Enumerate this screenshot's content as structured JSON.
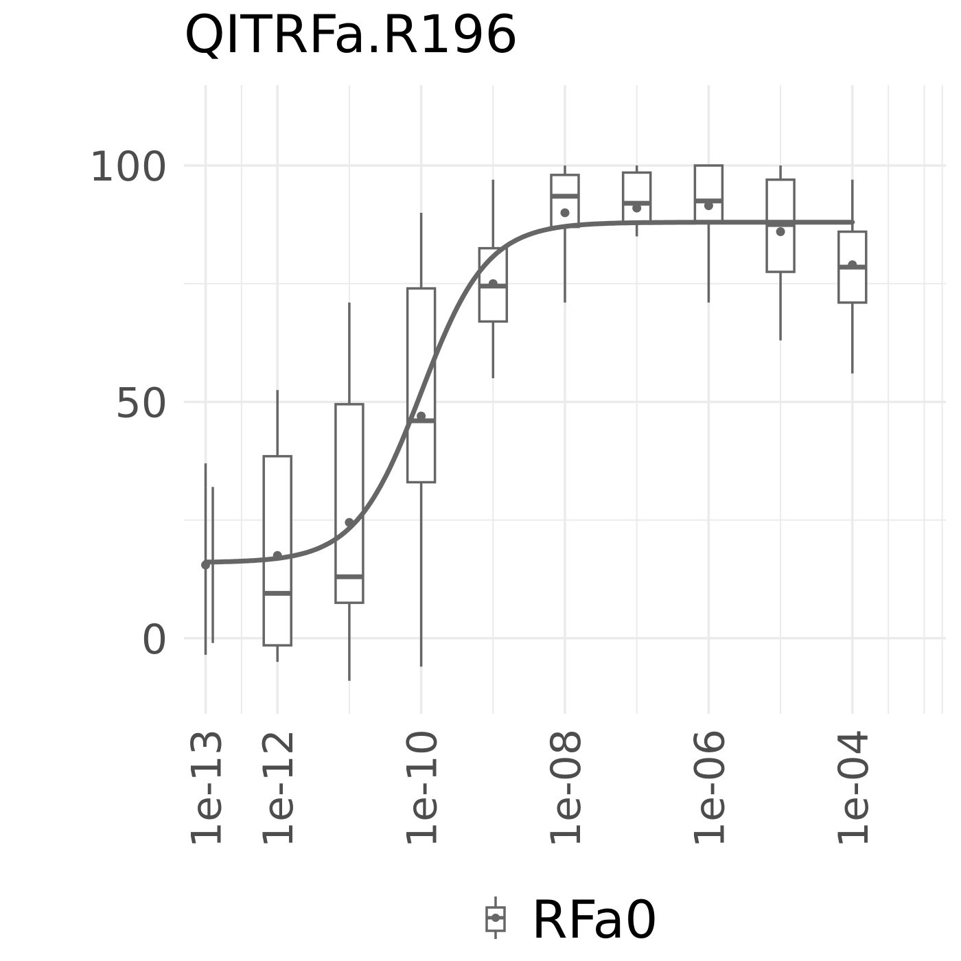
{
  "chart_data": {
    "type": "box",
    "title": "QITRFa.R196",
    "xlabel": "",
    "ylabel": "",
    "x_scale": "log10",
    "xlim": [
      5e-14,
      0.002
    ],
    "ylim": [
      -16,
      117
    ],
    "x_ticks": [
      1e-13,
      1e-12,
      1e-10,
      1e-08,
      1e-06,
      0.0001
    ],
    "x_tick_labels": [
      "1e-13",
      "1e-12",
      "1e-10",
      "1e-08",
      "1e-06",
      "1e-04"
    ],
    "y_ticks": [
      0,
      50,
      100
    ],
    "y_tick_labels": [
      "0",
      "50",
      "100"
    ],
    "grid": true,
    "legend": {
      "position": "bottom",
      "entries": [
        "RFa0"
      ]
    },
    "color": "#666666",
    "series": [
      {
        "name": "RFa0",
        "boxes": [
          {
            "x": 1e-13,
            "whisker_low": -3.5,
            "q1": 32,
            "median": 32,
            "q3": 32,
            "whisker_high": 37,
            "mean": 15.5
          },
          {
            "x": 1e-12,
            "whisker_low": -5,
            "q1": -1.5,
            "median": 9.5,
            "q3": 38.5,
            "whisker_high": 52.5,
            "mean": 17.5
          },
          {
            "x": 1e-11,
            "whisker_low": -9,
            "q1": 7.5,
            "median": 13,
            "q3": 49.5,
            "whisker_high": 71,
            "mean": 24.5
          },
          {
            "x": 1e-10,
            "whisker_low": -6,
            "q1": 33,
            "median": 46,
            "q3": 74,
            "whisker_high": 90,
            "mean": 47
          },
          {
            "x": 1e-09,
            "whisker_low": 55,
            "q1": 67,
            "median": 74.5,
            "q3": 82.5,
            "whisker_high": 97,
            "mean": 75
          },
          {
            "x": 1e-08,
            "whisker_low": 71,
            "q1": 87,
            "median": 93.5,
            "q3": 98,
            "whisker_high": 100,
            "mean": 90
          },
          {
            "x": 1e-07,
            "whisker_low": 85,
            "q1": 88,
            "median": 92,
            "q3": 98.5,
            "whisker_high": 100,
            "mean": 91
          },
          {
            "x": 1e-06,
            "whisker_low": 71,
            "q1": 88,
            "median": 92.5,
            "q3": 100,
            "whisker_high": 100,
            "mean": 91.5
          },
          {
            "x": 1e-05,
            "whisker_low": 63,
            "q1": 77.5,
            "median": 87.5,
            "q3": 97,
            "whisker_high": 100,
            "mean": 86
          },
          {
            "x": 0.0001,
            "whisker_low": 56,
            "q1": 71,
            "median": 78.5,
            "q3": 86,
            "whisker_high": 97,
            "mean": 79
          }
        ],
        "extra_segments": [
          {
            "x": 1.26e-13,
            "y_low": -1,
            "y_high": 32
          }
        ],
        "fit_curve": {
          "model": "4PL",
          "bottom": 16,
          "top": 88,
          "ec50": 1e-10,
          "hill": 0.95,
          "x_range": [
            1e-13,
            0.0001
          ]
        }
      }
    ]
  }
}
